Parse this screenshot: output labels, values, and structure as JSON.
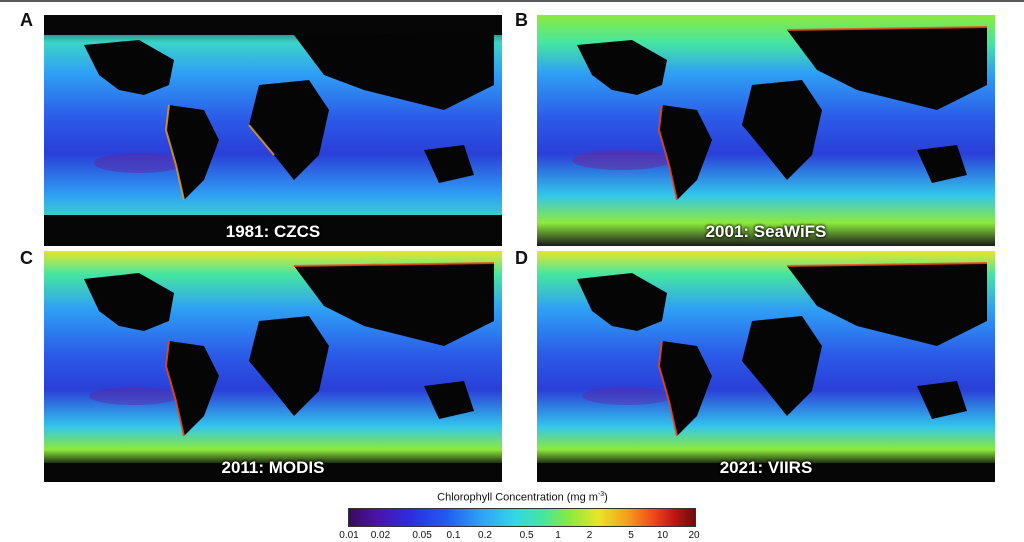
{
  "panels": [
    {
      "letter": "A",
      "caption": "1981: CZCS"
    },
    {
      "letter": "B",
      "caption": "2001: SeaWiFS"
    },
    {
      "letter": "C",
      "caption": "2011: MODIS"
    },
    {
      "letter": "D",
      "caption": "2021: VIIRS"
    }
  ],
  "legend": {
    "title": "Chlorophyll Concentration (mg m",
    "title_sup": "-3",
    "title_close": ")",
    "ticks": [
      "0.01",
      "0.02",
      "0.05",
      "0.1",
      "0.2",
      "0.5",
      "1",
      "2",
      "5",
      "10",
      "20"
    ]
  },
  "colors": {
    "land": "#050505",
    "oligotrophic": "#2b3fe0",
    "mid": "#2fa0f5",
    "productive": "#45e6a0",
    "coastal_high": "#f0491a"
  }
}
